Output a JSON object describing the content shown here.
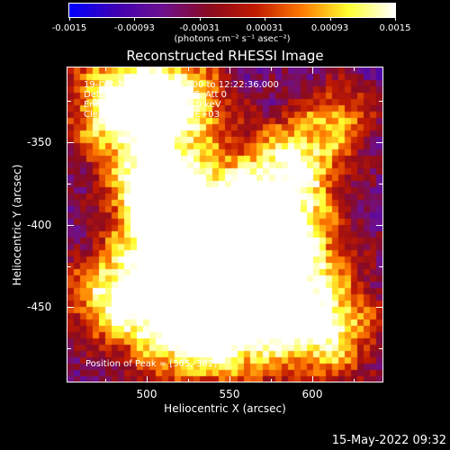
{
  "colorbar": {
    "tick_labels": [
      "-0.0015",
      "-0.00093",
      "-0.00031",
      "0.00031",
      "0.00093",
      "0.0015"
    ],
    "units": "(photons cm⁻² s⁻¹ asec⁻²)",
    "colormap": [
      "#0000ff",
      "#3f00b3",
      "#6e1090",
      "#8a0a20",
      "#c11a00",
      "#ff7a00",
      "#ffff30",
      "#ffffff"
    ]
  },
  "plot": {
    "title": "Reconstructed RHESSI Image",
    "info_lines": [
      "19-Oct-2012 12:21:16.000 to 12:22:36.000",
      "Detectors: 3F 5F 6F 7F 8F, Att 0",
      "Energy Range: 12.0 - 25.0 keV",
      "Clean. Total counts: 1.39E+03"
    ],
    "peak_note": "Position of Peak = [505,-382]"
  },
  "axes": {
    "xlabel": "Heliocentric X (arcsec)",
    "ylabel": "Heliocentric Y (arcsec)",
    "x_ticks": [
      "500",
      "550",
      "600"
    ],
    "y_ticks": [
      "-350",
      "-400",
      "-450"
    ],
    "xlim": [
      456,
      640
    ],
    "ylim": [
      -496,
      -312
    ]
  },
  "footer": {
    "datestamp": "15-May-2022 09:32"
  }
}
